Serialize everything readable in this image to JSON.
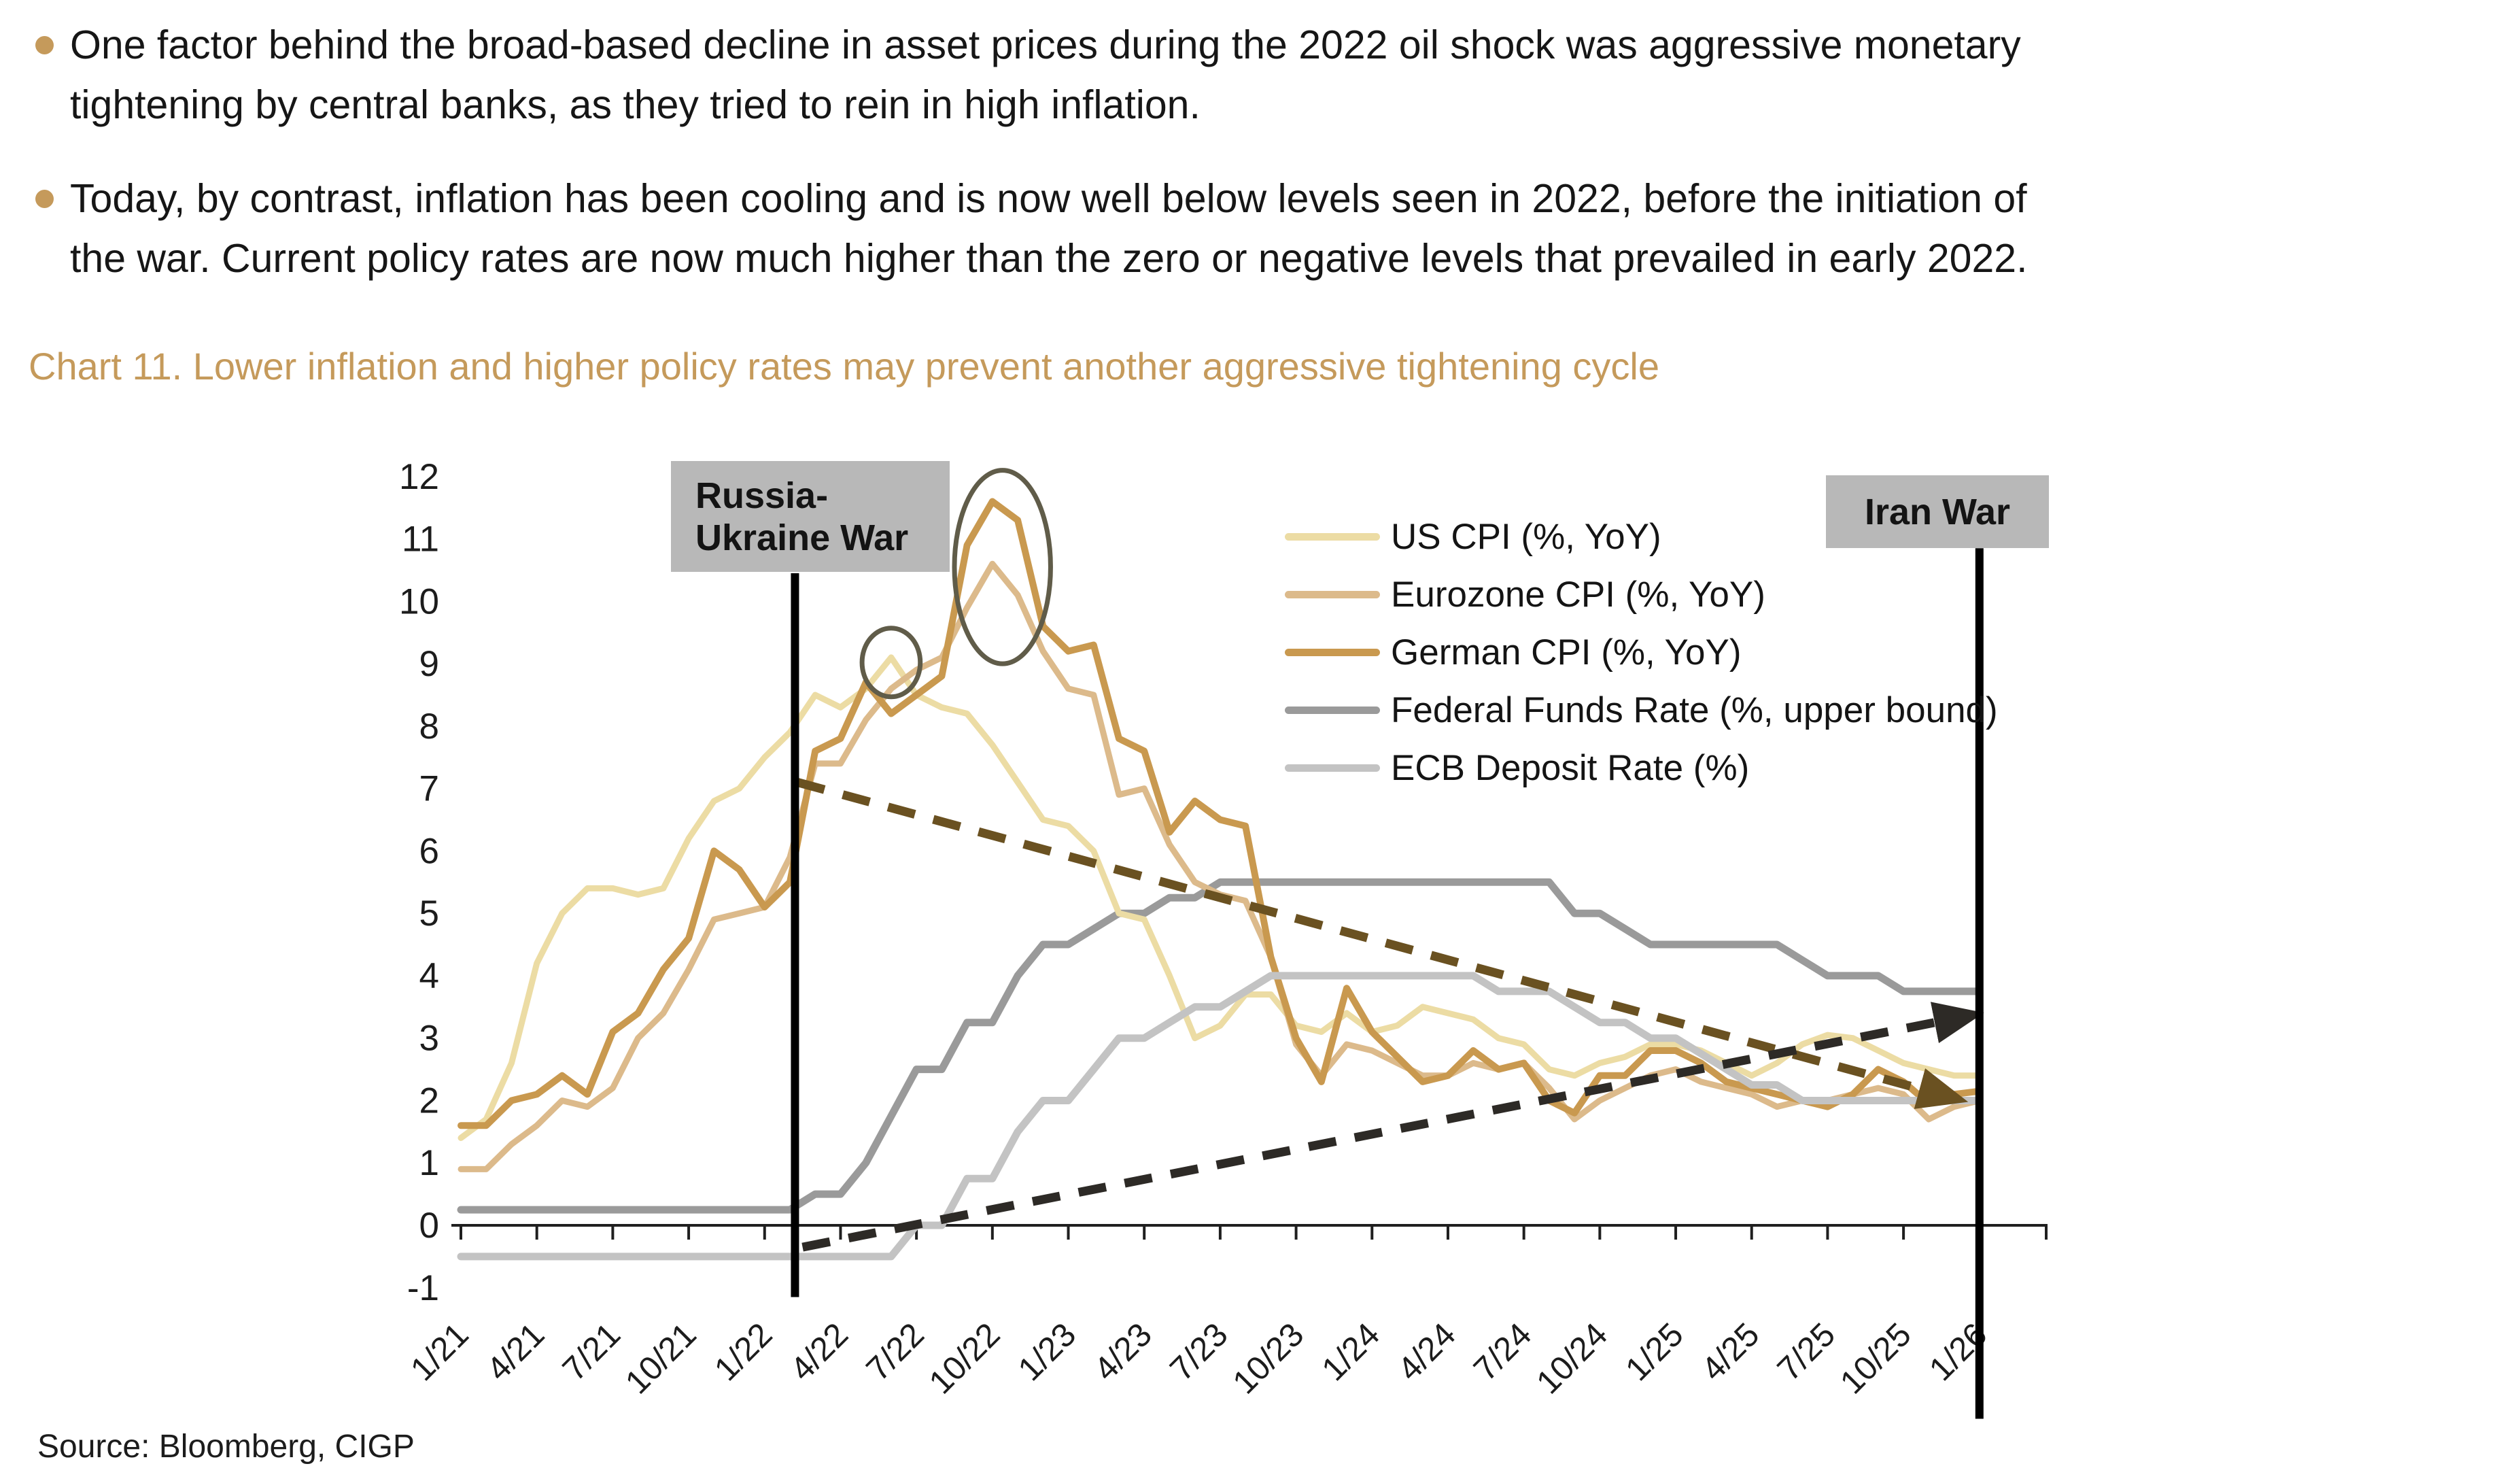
{
  "bullets": [
    {
      "lines": [
        "One factor behind the broad-based decline in asset prices during the 2022 oil shock was aggressive monetary",
        "tightening by central banks, as they tried to rein in high inflation."
      ]
    },
    {
      "lines": [
        "Today, by contrast, inflation has been cooling and is now well below levels seen in 2022, before the initiation of",
        "the war. Current policy rates are now much higher than the zero or negative levels that prevailed in early 2022."
      ]
    }
  ],
  "chart_title": "Chart 11. Lower inflation and higher policy rates may prevent another aggressive tightening cycle",
  "source": "Source: Bloomberg, CIGP",
  "colors": {
    "accent_gold": "#c59a5b",
    "event_box_bg": "#b8b8b8",
    "axis": "#1f1f1f",
    "us_cpi": "#ecdca4",
    "eurozone_cpi": "#dcba8b",
    "german_cpi": "#c9994f",
    "fed_funds": "#9a9a9a",
    "ecb_deposit": "#c3c3c3",
    "easing_arrow": "#6a5121",
    "tightening_arrow": "#2d2a26",
    "highlight_stroke": "#605c49"
  },
  "annotations": {
    "russia_ukraine": {
      "label_lines": [
        "Russia-",
        "Ukraine War"
      ]
    },
    "iran": {
      "label": "Iran War"
    }
  },
  "chart_data": {
    "type": "line",
    "title": "Lower inflation and higher policy rates may prevent another aggressive tightening cycle",
    "xlabel": "",
    "ylabel": "",
    "ylim": [
      -1,
      12
    ],
    "y_ticks": [
      12,
      11,
      10,
      9,
      8,
      7,
      6,
      5,
      4,
      3,
      2,
      1,
      0,
      -1
    ],
    "x_tick_labels": [
      "1/21",
      "4/21",
      "7/21",
      "10/21",
      "1/22",
      "4/22",
      "7/22",
      "10/22",
      "1/23",
      "4/23",
      "7/23",
      "10/23",
      "1/24",
      "4/24",
      "7/24",
      "10/24",
      "1/25",
      "4/25",
      "7/25",
      "10/25",
      "1/26"
    ],
    "x_frequency": "monthly",
    "x_start": "1/21",
    "grid": false,
    "legend_position": "upper-middle",
    "series": [
      {
        "name": "US CPI (%, YoY)",
        "color_key": "us_cpi",
        "width": 9,
        "values": [
          1.4,
          1.7,
          2.6,
          4.2,
          5.0,
          5.4,
          5.4,
          5.3,
          5.4,
          6.2,
          6.8,
          7.0,
          7.5,
          7.9,
          8.5,
          8.3,
          8.6,
          9.1,
          8.5,
          8.3,
          8.2,
          7.7,
          7.1,
          6.5,
          6.4,
          6.0,
          5.0,
          4.9,
          4.0,
          3.0,
          3.2,
          3.7,
          3.7,
          3.2,
          3.1,
          3.4,
          3.1,
          3.2,
          3.5,
          3.4,
          3.3,
          3.0,
          2.9,
          2.5,
          2.4,
          2.6,
          2.7,
          2.9,
          2.9,
          2.8,
          2.6,
          2.4,
          2.6,
          2.9,
          3.05,
          3.0,
          2.8,
          2.6,
          2.5,
          2.4,
          2.4
        ]
      },
      {
        "name": "Eurozone CPI (%, YoY)",
        "color_key": "eurozone_cpi",
        "width": 9,
        "values": [
          0.9,
          0.9,
          1.3,
          1.6,
          2.0,
          1.9,
          2.2,
          3.0,
          3.4,
          4.1,
          4.9,
          5.0,
          5.1,
          5.9,
          7.4,
          7.4,
          8.1,
          8.6,
          8.9,
          9.1,
          9.9,
          10.6,
          10.1,
          9.2,
          8.6,
          8.5,
          6.9,
          7.0,
          6.1,
          5.5,
          5.3,
          5.2,
          4.3,
          2.9,
          2.4,
          2.9,
          2.8,
          2.6,
          2.4,
          2.4,
          2.6,
          2.5,
          2.6,
          2.2,
          1.7,
          2.0,
          2.2,
          2.4,
          2.5,
          2.3,
          2.2,
          2.1,
          1.9,
          2.0,
          2.0,
          2.1,
          2.2,
          2.1,
          1.7,
          1.9,
          2.0
        ]
      },
      {
        "name": "German CPI (%, YoY)",
        "color_key": "german_cpi",
        "width": 10,
        "values": [
          1.6,
          1.6,
          2.0,
          2.1,
          2.4,
          2.1,
          3.1,
          3.4,
          4.1,
          4.6,
          6.0,
          5.7,
          5.1,
          5.5,
          7.6,
          7.8,
          8.7,
          8.2,
          8.5,
          8.8,
          10.9,
          11.6,
          11.3,
          9.6,
          9.2,
          9.3,
          7.8,
          7.6,
          6.3,
          6.8,
          6.5,
          6.4,
          4.3,
          3.0,
          2.3,
          3.8,
          3.1,
          2.7,
          2.3,
          2.4,
          2.8,
          2.5,
          2.6,
          2.0,
          1.8,
          2.4,
          2.4,
          2.8,
          2.8,
          2.6,
          2.3,
          2.2,
          2.1,
          2.0,
          1.9,
          2.1,
          2.5,
          2.3,
          1.95,
          2.1,
          2.15
        ]
      },
      {
        "name": "Federal Funds Rate (%, upper bound)",
        "color_key": "fed_funds",
        "width": 11,
        "values": [
          0.25,
          0.25,
          0.25,
          0.25,
          0.25,
          0.25,
          0.25,
          0.25,
          0.25,
          0.25,
          0.25,
          0.25,
          0.25,
          0.25,
          0.5,
          0.5,
          1.0,
          1.75,
          2.5,
          2.5,
          3.25,
          3.25,
          4.0,
          4.5,
          4.5,
          4.75,
          5.0,
          5.0,
          5.25,
          5.25,
          5.5,
          5.5,
          5.5,
          5.5,
          5.5,
          5.5,
          5.5,
          5.5,
          5.5,
          5.5,
          5.5,
          5.5,
          5.5,
          5.5,
          5.0,
          5.0,
          4.75,
          4.5,
          4.5,
          4.5,
          4.5,
          4.5,
          4.5,
          4.25,
          4.0,
          4.0,
          4.0,
          3.75,
          3.75,
          3.75,
          3.75
        ]
      },
      {
        "name": "ECB Deposit Rate (%)",
        "color_key": "ecb_deposit",
        "width": 11,
        "values": [
          -0.5,
          -0.5,
          -0.5,
          -0.5,
          -0.5,
          -0.5,
          -0.5,
          -0.5,
          -0.5,
          -0.5,
          -0.5,
          -0.5,
          -0.5,
          -0.5,
          -0.5,
          -0.5,
          -0.5,
          -0.5,
          0.0,
          0.0,
          0.75,
          0.75,
          1.5,
          2.0,
          2.0,
          2.5,
          3.0,
          3.0,
          3.25,
          3.5,
          3.5,
          3.75,
          4.0,
          4.0,
          4.0,
          4.0,
          4.0,
          4.0,
          4.0,
          4.0,
          4.0,
          3.75,
          3.75,
          3.75,
          3.5,
          3.25,
          3.25,
          3.0,
          3.0,
          2.75,
          2.5,
          2.25,
          2.25,
          2.0,
          2.0,
          2.0,
          2.0,
          2.0,
          2.0,
          2.0,
          2.0
        ]
      }
    ],
    "events": [
      {
        "name": "russia-ukraine-war",
        "label": "Russia-Ukraine War",
        "month_index": 13.2,
        "line_top_value": 10.45,
        "line_bottom_value": -1.15
      },
      {
        "name": "iran-war",
        "label": "Iran War",
        "month_index": 60,
        "line_top_value": 10.85,
        "line_bottom_value": -3.1
      }
    ],
    "trend_arrows": [
      {
        "name": "lower-inflation-path",
        "color_key": "easing_arrow",
        "from": [
          13.3,
          7.1
        ],
        "to": [
          58.0,
          2.15
        ]
      },
      {
        "name": "higher-policy-rate-path",
        "color_key": "tightening_arrow",
        "from": [
          13.5,
          -0.35
        ],
        "to": [
          58.6,
          3.28
        ]
      }
    ],
    "highlights": [
      {
        "name": "us-cpi-peak-circle",
        "type": "ellipse",
        "center": [
          17.0,
          9.02
        ],
        "rx_months": 1.15,
        "ry_units": 0.55
      },
      {
        "name": "german-cpi-peak-ellipse",
        "type": "ellipse",
        "center": [
          21.4,
          10.55
        ],
        "rx_months": 1.9,
        "ry_units": 1.55
      }
    ]
  }
}
